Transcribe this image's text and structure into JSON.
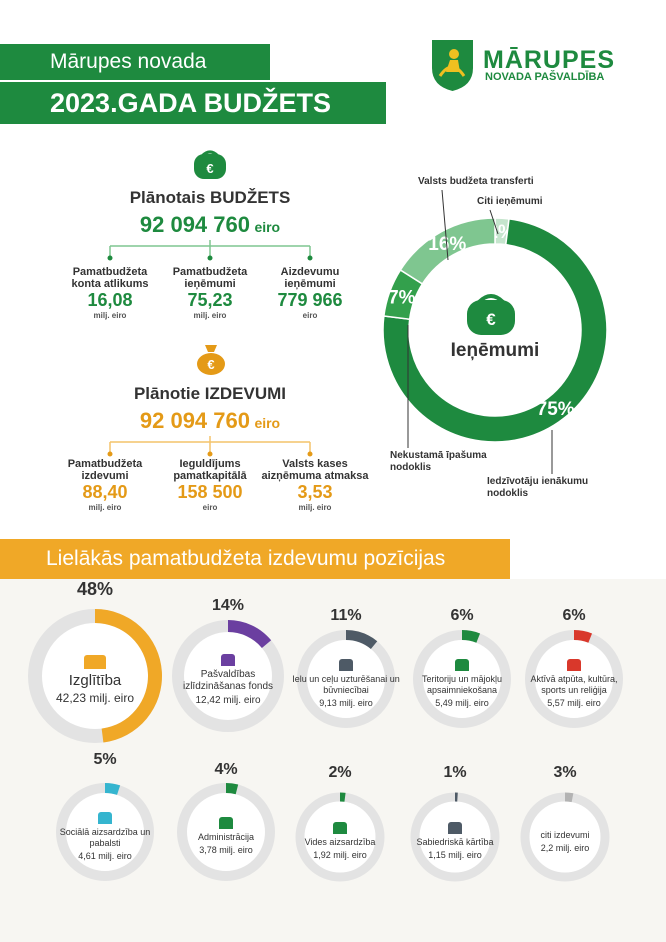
{
  "header": {
    "line1": "Mārupes novada",
    "line2": "2023.GADA BUDŽETS",
    "logo_name": "MĀRUPES",
    "logo_sub": "NOVADA PAŠVALDĪBA"
  },
  "budget": {
    "title": "Plānotais BUDŽETS",
    "amount": "92 094 760",
    "unit": "eiro",
    "items": [
      {
        "label1": "Pamatbudžeta",
        "label2": "konta atlikums",
        "value": "16,08",
        "unit": "milj. eiro"
      },
      {
        "label1": "Pamatbudžeta",
        "label2": "ieņēmumi",
        "value": "75,23",
        "unit": "milj. eiro"
      },
      {
        "label1": "Aizdevumu",
        "label2": "ieņēmumi",
        "value": "779 966",
        "unit": "eiro"
      }
    ]
  },
  "expenses": {
    "title": "Plānotie IZDEVUMI",
    "amount": "92 094 760",
    "unit": "eiro",
    "items": [
      {
        "label1": "Pamatbudžeta",
        "label2": "izdevumi",
        "value": "88,40",
        "unit": "milj. eiro"
      },
      {
        "label1": "Ieguldījums",
        "label2": "pamatkapitālā",
        "value": "158 500",
        "unit": "eiro"
      },
      {
        "label1": "Valsts kases",
        "label2": "aizņēmuma atmaksa",
        "value": "3,53",
        "unit": "milj. eiro"
      }
    ]
  },
  "colors": {
    "green": "#1e8a3f",
    "orange": "#e49a17",
    "purple": "#6b3fa0",
    "slate": "#4e5a66",
    "red": "#d9382b",
    "teal": "#35b5cf",
    "grey": "#b3b3b3",
    "ring": "#e3e3e3"
  },
  "chart_data": [
    {
      "type": "pie",
      "title": "Ieņēmumi",
      "slices": [
        {
          "label": "Iedzīvotāju ienākumu nodoklis",
          "value": 75,
          "text": "75%",
          "color": "#1e8a3f"
        },
        {
          "label": "Nekustamā īpašuma nodoklis",
          "value": 7,
          "text": "7%",
          "color": "#33a04c"
        },
        {
          "label": "Valsts budžeta transferti",
          "value": 16,
          "text": "16%",
          "color": "#7fc690"
        },
        {
          "label": "Citi ieņēmumi",
          "value": 2,
          "text": "2%",
          "color": "#c5e5cd"
        }
      ]
    },
    {
      "type": "pie",
      "title": "Lielākās pamatbudžeta izdevumu pozīcijas",
      "items": [
        {
          "pct": 48,
          "pct_text": "48%",
          "name": "Izglītība",
          "value": "42,23 milj. eiro",
          "color": "#f0a827",
          "icon": "graduation-cap-icon"
        },
        {
          "pct": 14,
          "pct_text": "14%",
          "name": "Pašvaldības izlīdzināšanas fonds",
          "value": "12,42 milj. eiro",
          "color": "#6b3fa0",
          "icon": "buildings-icon"
        },
        {
          "pct": 11,
          "pct_text": "11%",
          "name": "Ielu un ceļu uzturēšanai un būvniecībai",
          "value": "9,13 milj. eiro",
          "color": "#4e5a66",
          "icon": "road-icon"
        },
        {
          "pct": 6,
          "pct_text": "6%",
          "name": "Teritoriju un mājokļu apsaimniekošana",
          "value": "5,49 milj. eiro",
          "color": "#1e8a3f",
          "icon": "city-icon"
        },
        {
          "pct": 6,
          "pct_text": "6%",
          "name": "Aktīvā atpūta, kultūra, sports un reliģija",
          "value": "5,57 milj. eiro",
          "color": "#d9382b",
          "icon": "culture-icon"
        },
        {
          "pct": 5,
          "pct_text": "5%",
          "name": "Sociālā aizsardzība un pabalsti",
          "value": "4,61 milj. eiro",
          "color": "#35b5cf",
          "icon": "people-icon"
        },
        {
          "pct": 4,
          "pct_text": "4%",
          "name": "Administrācija",
          "value": "3,78 milj. eiro",
          "color": "#1e8a3f",
          "icon": "institution-icon"
        },
        {
          "pct": 2,
          "pct_text": "2%",
          "name": "Vides aizsardzība",
          "value": "1,92 milj. eiro",
          "color": "#1e8a3f",
          "icon": "sprout-icon"
        },
        {
          "pct": 1,
          "pct_text": "1%",
          "name": "Sabiedriskā kārtība",
          "value": "1,15 milj. eiro",
          "color": "#4e5a66",
          "icon": "police-icon"
        },
        {
          "pct": 3,
          "pct_text": "3%",
          "name": "citi izdevumi",
          "value": "2,2 milj. eiro",
          "color": "#b3b3b3",
          "icon": ""
        }
      ]
    }
  ]
}
